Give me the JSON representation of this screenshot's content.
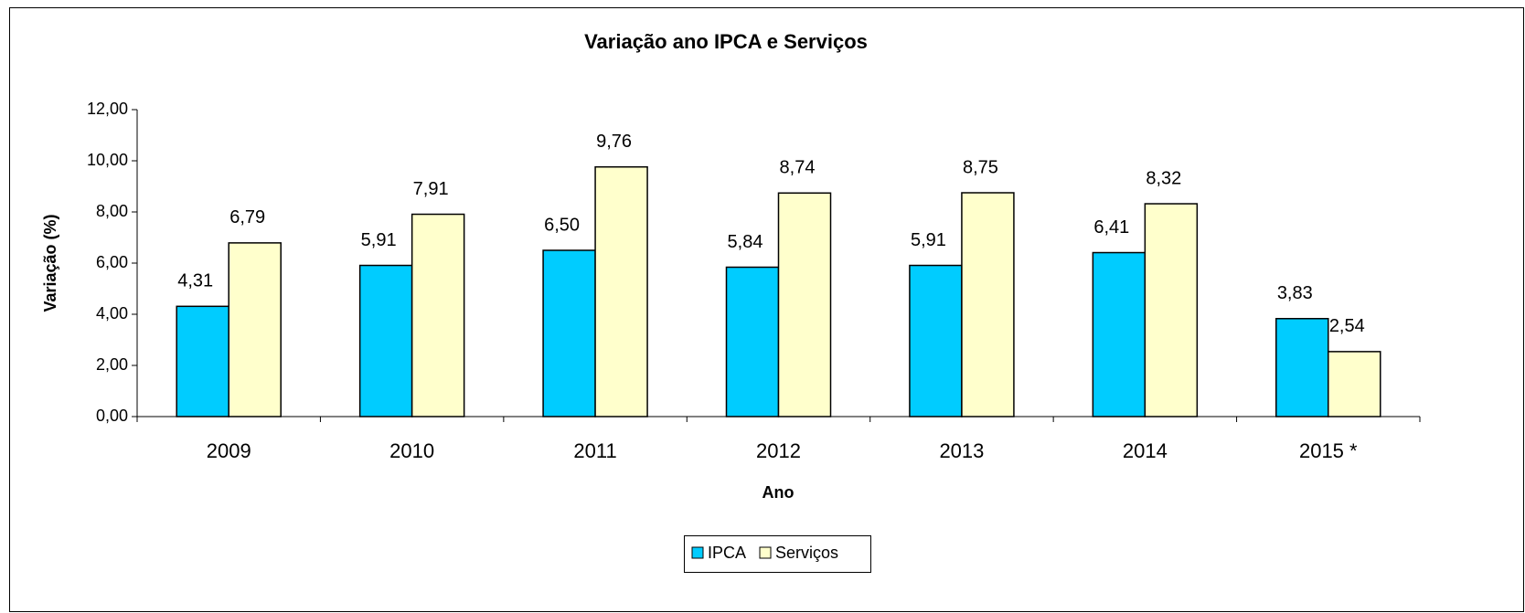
{
  "chart_data": {
    "type": "bar",
    "title": "Variação ano IPCA e Serviços",
    "x_label": "Ano",
    "y_label": "Variação (%)",
    "categories": [
      "2009",
      "2010",
      "2011",
      "2012",
      "2013",
      "2014",
      "2015 *"
    ],
    "series": [
      {
        "name": "IPCA",
        "color": "#00ccff",
        "values": [
          4.31,
          5.91,
          6.5,
          5.84,
          5.91,
          6.41,
          3.83
        ],
        "value_labels": [
          "4,31",
          "5,91",
          "6,50",
          "5,84",
          "5,91",
          "6,41",
          "3,83"
        ]
      },
      {
        "name": "Serviços",
        "color": "#ffffcc",
        "values": [
          6.79,
          7.91,
          9.76,
          8.74,
          8.75,
          8.32,
          2.54
        ],
        "value_labels": [
          "6,79",
          "7,91",
          "9,76",
          "8,74",
          "8,75",
          "8,32",
          "2,54"
        ]
      }
    ],
    "ylim": [
      0,
      12
    ],
    "yticks": [
      {
        "value": 0,
        "label": "0,00"
      },
      {
        "value": 2,
        "label": "2,00"
      },
      {
        "value": 4,
        "label": "4,00"
      },
      {
        "value": 6,
        "label": "6,00"
      },
      {
        "value": 8,
        "label": "8,00"
      },
      {
        "value": 10,
        "label": "10,00"
      },
      {
        "value": 12,
        "label": "12,00"
      }
    ],
    "legend": "bottom",
    "grid": false
  }
}
